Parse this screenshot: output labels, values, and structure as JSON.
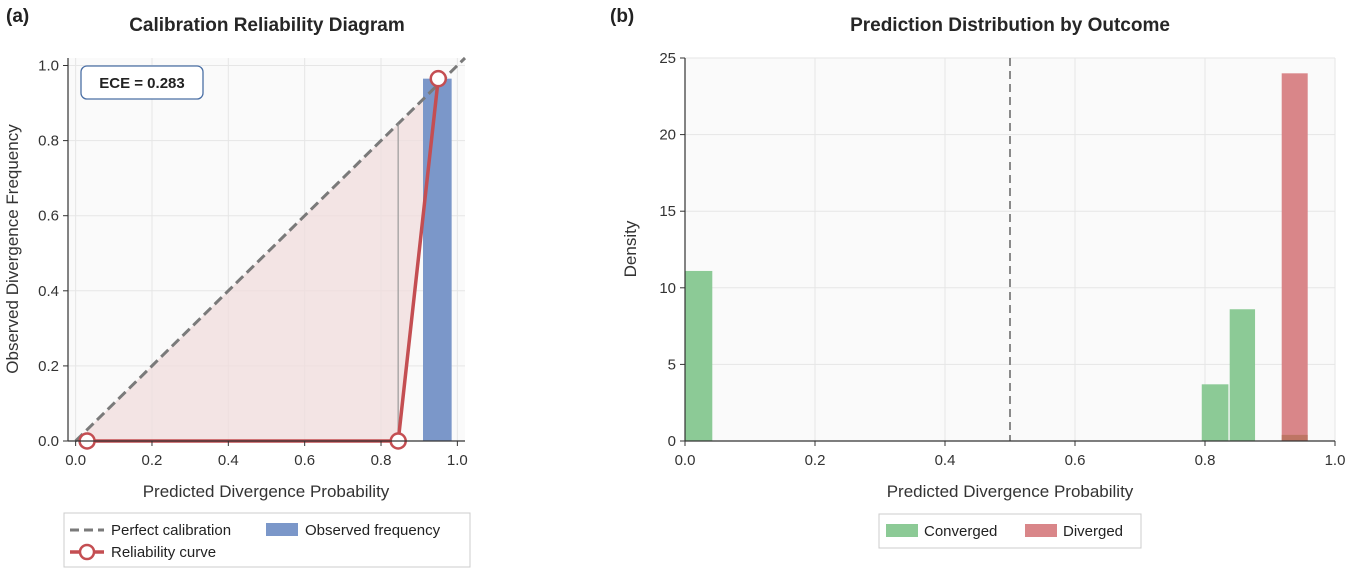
{
  "colors": {
    "perfect_line": "#7a7a7a",
    "reliability": "#c44e52",
    "observed_bar": "#7b97c9",
    "gap_fill": "#f0dcdc",
    "converged": "#8cca96",
    "diverged": "#d98689",
    "overlap": "#b9725e",
    "plot_bg": "#fafafa",
    "grid": "#e6e6e6",
    "ece_border": "#4a6fa5"
  },
  "chart_data": [
    {
      "panel": "(a)",
      "type": "line",
      "title": "Calibration Reliability Diagram",
      "xlabel": "Predicted Divergence Probability",
      "ylabel": "Observed Divergence Frequency",
      "xlim": [
        -0.02,
        1.02
      ],
      "ylim": [
        0,
        1.02
      ],
      "xticks": [
        "0.0",
        "0.2",
        "0.4",
        "0.6",
        "0.8",
        "1.0"
      ],
      "yticks": [
        "0.0",
        "0.2",
        "0.4",
        "0.6",
        "0.8",
        "1.0"
      ],
      "grid": true,
      "annotation": "ECE = 0.283",
      "perfect_calibration": {
        "x": [
          0,
          1
        ],
        "y": [
          0,
          1
        ]
      },
      "reliability_curve": {
        "x": [
          0.03,
          0.845,
          0.95
        ],
        "y": [
          0.0,
          0.0,
          0.965
        ]
      },
      "observed_frequency_bars": [
        {
          "x0": 0.91,
          "x1": 0.985,
          "value": 0.965
        }
      ],
      "gap_lines": [
        {
          "x": 0.845,
          "y0": 0.0,
          "y1": 0.845
        }
      ],
      "legend": {
        "placement": "bottom-center",
        "entries": [
          "Perfect calibration",
          "Reliability curve",
          "Observed frequency"
        ]
      }
    },
    {
      "panel": "(b)",
      "type": "bar",
      "title": "Prediction Distribution by Outcome",
      "xlabel": "Predicted Divergence Probability",
      "ylabel": "Density",
      "xlim": [
        0,
        1
      ],
      "ylim": [
        0,
        25
      ],
      "xticks": [
        "0.0",
        "0.2",
        "0.4",
        "0.6",
        "0.8",
        "1.0"
      ],
      "yticks": [
        "0",
        "5",
        "10",
        "15",
        "20",
        "25"
      ],
      "grid": true,
      "threshold_line_x": 0.5,
      "series": [
        {
          "name": "Converged",
          "bins": [
            {
              "x0": 0.0,
              "x1": 0.042,
              "value": 11.1
            },
            {
              "x0": 0.795,
              "x1": 0.836,
              "value": 3.7
            },
            {
              "x0": 0.838,
              "x1": 0.877,
              "value": 8.6
            },
            {
              "x0": 0.918,
              "x1": 0.958,
              "value": 0.4
            }
          ]
        },
        {
          "name": "Diverged",
          "bins": [
            {
              "x0": 0.918,
              "x1": 0.958,
              "value": 24.0
            }
          ]
        }
      ],
      "legend": {
        "placement": "bottom-center",
        "entries": [
          "Converged",
          "Diverged"
        ]
      }
    }
  ]
}
